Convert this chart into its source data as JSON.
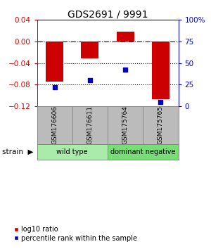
{
  "title": "GDS2691 / 9991",
  "samples": [
    "GSM176606",
    "GSM176611",
    "GSM175764",
    "GSM175765"
  ],
  "log10_ratio": [
    -0.075,
    -0.032,
    0.018,
    -0.107
  ],
  "percentile_rank": [
    22,
    30,
    42,
    5
  ],
  "ylim": [
    -0.12,
    0.04
  ],
  "left_yticks": [
    0.04,
    0,
    -0.04,
    -0.08,
    -0.12
  ],
  "right_ytick_vals": [
    100,
    75,
    50,
    25,
    0
  ],
  "right_ytick_labels": [
    "100%",
    "75",
    "50",
    "25",
    "0"
  ],
  "strain_groups": [
    {
      "label": "wild type",
      "samples": [
        0,
        1
      ],
      "color": "#aaeaaa"
    },
    {
      "label": "dominant negative",
      "samples": [
        2,
        3
      ],
      "color": "#77dd77"
    }
  ],
  "bar_color": "#cc0000",
  "dot_color": "#0000cc",
  "background_color": "#ffffff",
  "left_axis_color": "#cc0000",
  "right_axis_color": "#0000cc",
  "label_log10": "log10 ratio",
  "label_pct": "percentile rank within the sample",
  "x_positions": [
    0,
    1,
    2,
    3
  ],
  "bar_width": 0.5,
  "names_bg": "#bbbbbb",
  "names_edge": "#888888"
}
